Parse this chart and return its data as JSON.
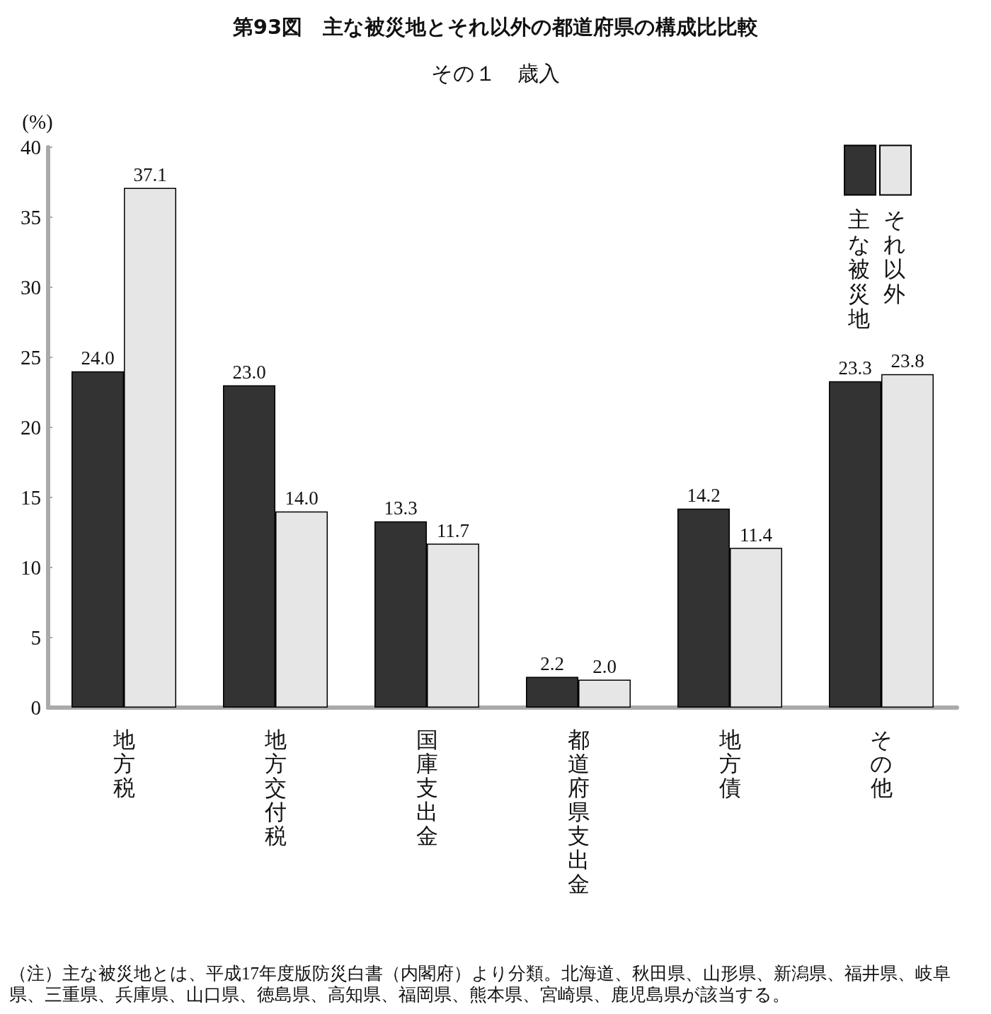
{
  "chart_data": {
    "type": "bar",
    "title": "第93図　主な被災地とそれ以外の都道府県の構成比比較",
    "subtitle": "その１　歳入",
    "ylabel": "(%)",
    "categories": [
      "地方税",
      "地方交付税",
      "国庫支出金",
      "都道府県支出金",
      "地方債",
      "その他"
    ],
    "series": [
      {
        "name": "主な被災地",
        "color": "#333333",
        "values": [
          24.0,
          23.0,
          13.3,
          2.2,
          14.2,
          23.3
        ],
        "value_labels": [
          "24.0",
          "23.0",
          "13.3",
          "2.2",
          "14.2",
          "23.3"
        ]
      },
      {
        "name": "それ以外",
        "color": "#e6e6e6",
        "values": [
          37.1,
          14.0,
          11.7,
          2.0,
          11.4,
          23.8
        ],
        "value_labels": [
          "37.1",
          "14.0",
          "11.7",
          "2.0",
          "11.4",
          "23.8"
        ]
      }
    ],
    "ylim": [
      0,
      40
    ],
    "yticks": [
      0,
      5,
      10,
      15,
      20,
      25,
      30,
      35,
      40
    ],
    "grid": false,
    "legend": "top right",
    "data_labels": true,
    "annotations": [
      "（注）主な被災地とは、平成17年度版防災白書（内閣府）より分類。北海道、秋田県、山形県、新潟県、福井県、岐阜県、三重県、兵庫県、山口県、徳島県、高知県、福岡県、熊本県、宮崎県、鹿児島県が該当する。"
    ]
  }
}
